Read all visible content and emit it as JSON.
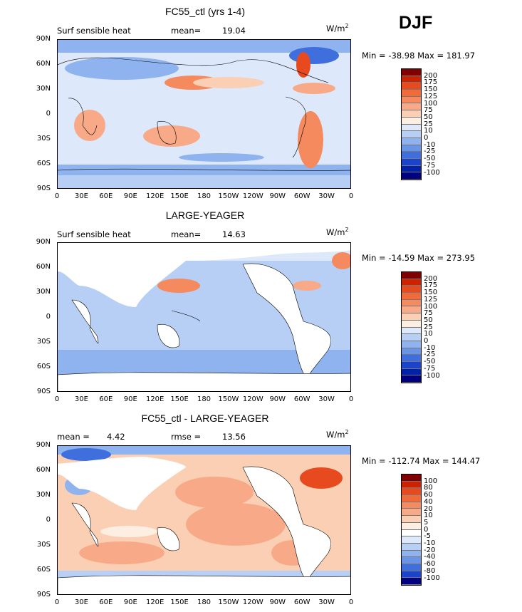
{
  "season": "DJF",
  "units": {
    "base": "W/m",
    "exp": "2"
  },
  "panels": [
    {
      "title": "FC55_ctl (yrs 1-4)",
      "left_label": "Surf sensible heat",
      "stat1_label": "mean=",
      "stat1_value": "19.04",
      "stat2_label": "",
      "stat2_value": "",
      "minmax": "Min = -38.98 Max = 181.97",
      "legend_labels": [
        "200",
        "175",
        "150",
        "125",
        "100",
        "75",
        "50",
        "25",
        "10",
        "0",
        "-10",
        "-25",
        "-50",
        "-75",
        "-100"
      ],
      "legend_colors": [
        "#800000",
        "#cc2200",
        "#e84a20",
        "#f06a3a",
        "#f48a5e",
        "#f8aa88",
        "#fbcfb4",
        "#fdeee2",
        "#dde9fb",
        "#b7cff5",
        "#8fb3ee",
        "#6a95e6",
        "#3f6fdc",
        "#1a44cc",
        "#0022a8",
        "#000080"
      ]
    },
    {
      "title": "LARGE-YEAGER",
      "left_label": "Surf sensible heat",
      "stat1_label": "mean=",
      "stat1_value": "14.63",
      "stat2_label": "",
      "stat2_value": "",
      "minmax": "Min = -14.59 Max = 273.95",
      "legend_labels": [
        "200",
        "175",
        "150",
        "125",
        "100",
        "75",
        "50",
        "25",
        "10",
        "0",
        "-10",
        "-25",
        "-50",
        "-75",
        "-100"
      ],
      "legend_colors": [
        "#800000",
        "#cc2200",
        "#e84a20",
        "#f06a3a",
        "#f48a5e",
        "#f8aa88",
        "#fbcfb4",
        "#fdeee2",
        "#dde9fb",
        "#b7cff5",
        "#8fb3ee",
        "#6a95e6",
        "#3f6fdc",
        "#1a44cc",
        "#0022a8",
        "#000080"
      ]
    },
    {
      "title": "FC55_ctl - LARGE-YEAGER",
      "left_label": "mean =",
      "stat1_label": "",
      "stat1_value": "4.42",
      "stat2_label": "rmse =",
      "stat2_value": "13.56",
      "minmax": "Min = -112.74 Max = 144.47",
      "legend_labels": [
        "100",
        "80",
        "60",
        "40",
        "20",
        "10",
        "5",
        "0",
        "-5",
        "-10",
        "-20",
        "-40",
        "-60",
        "-80",
        "-100"
      ],
      "legend_colors": [
        "#800000",
        "#cc2200",
        "#e84a20",
        "#f06a3a",
        "#f48a5e",
        "#f8aa88",
        "#fbcfb4",
        "#fdeee2",
        "#ffffff",
        "#dde9fb",
        "#b7cff5",
        "#8fb3ee",
        "#6a95e6",
        "#3f6fdc",
        "#1a44cc",
        "#000080"
      ]
    }
  ],
  "lat_ticks": [
    "90N",
    "60N",
    "30N",
    "0",
    "30S",
    "60S",
    "90S"
  ],
  "lon_ticks": [
    "0",
    "30E",
    "60E",
    "90E",
    "120E",
    "150E",
    "180",
    "150W",
    "120W",
    "90W",
    "60W",
    "30W",
    "0"
  ]
}
